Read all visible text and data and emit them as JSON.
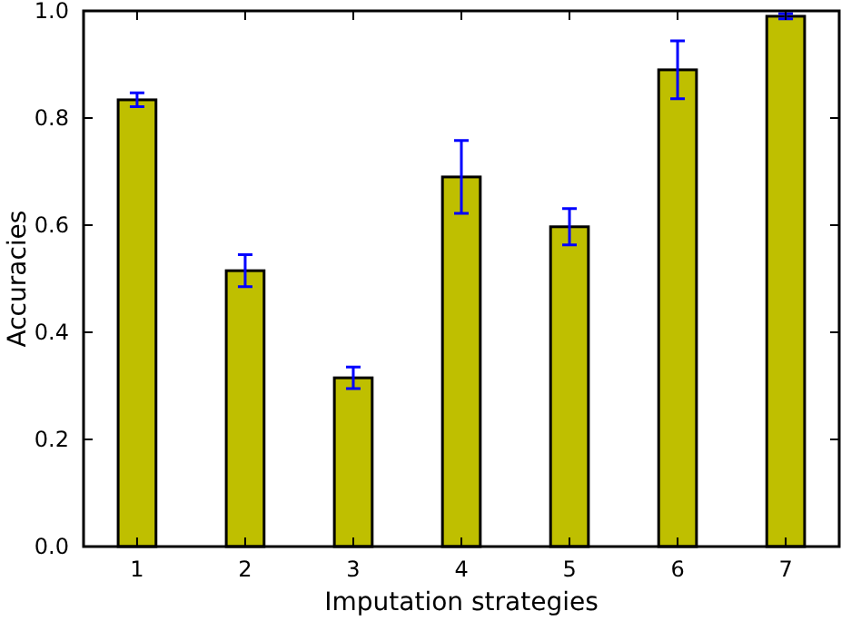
{
  "chart_data": {
    "type": "bar",
    "xlabel": "Imputation strategies",
    "ylabel": "Accuracies",
    "categories": [
      "1",
      "2",
      "3",
      "4",
      "5",
      "6",
      "7"
    ],
    "values": [
      0.834,
      0.515,
      0.315,
      0.69,
      0.597,
      0.89,
      0.99
    ],
    "errors": [
      0.013,
      0.03,
      0.02,
      0.068,
      0.034,
      0.054,
      0.005
    ],
    "color": "#bfbf00",
    "ylim": [
      0,
      1
    ],
    "yticks": [
      {
        "value": 0,
        "label": "0.0"
      },
      {
        "value": 0.2,
        "label": "0.2"
      },
      {
        "value": 0.4,
        "label": "0.4"
      },
      {
        "value": 0.6,
        "label": "0.6"
      },
      {
        "value": 0.8,
        "label": "0.8"
      },
      {
        "value": 1,
        "label": "1.0"
      }
    ],
    "grid": false
  }
}
